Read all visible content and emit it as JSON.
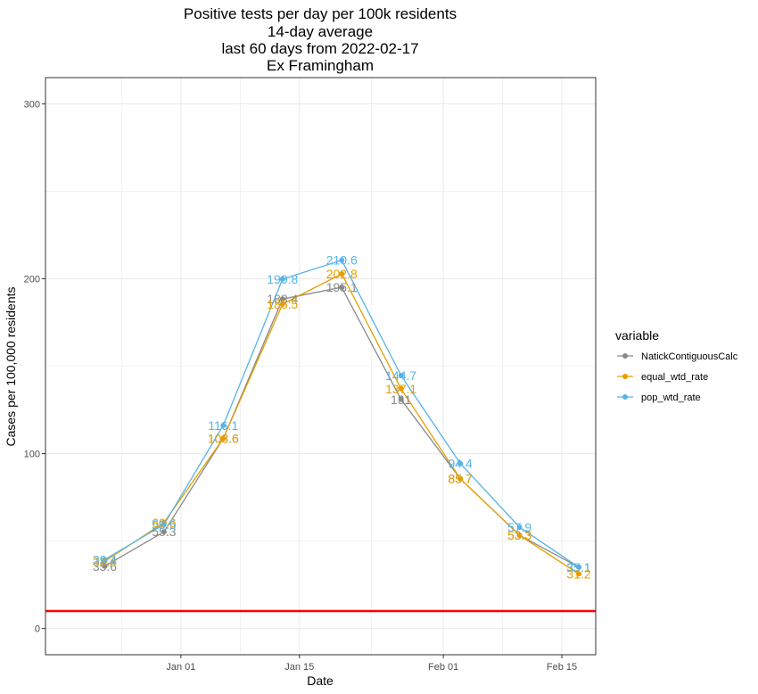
{
  "chart_data": {
    "type": "line",
    "title_lines": [
      "Positive tests per day per 100k residents",
      "14-day average",
      "last 60 days from 2022-02-17",
      "Ex Framingham"
    ],
    "xlabel": "Date",
    "ylabel": "Cases per 100,000 residents",
    "x_dates": [
      "2021-12-23",
      "2021-12-30",
      "2022-01-06",
      "2022-01-13",
      "2022-01-20",
      "2022-01-27",
      "2022-02-03",
      "2022-02-10",
      "2022-02-17"
    ],
    "xlim": [
      "2021-12-16",
      "2022-02-19"
    ],
    "x_ticks": [
      {
        "date": "2022-01-01",
        "label": "Jan 01"
      },
      {
        "date": "2022-01-15",
        "label": "Jan 15"
      },
      {
        "date": "2022-02-01",
        "label": "Feb 01"
      },
      {
        "date": "2022-02-15",
        "label": "Feb 15"
      }
    ],
    "y_ticks": [
      0,
      100,
      200,
      300
    ],
    "ylim": [
      -15,
      315
    ],
    "reference_line": {
      "y": 10,
      "color": "#ff0000"
    },
    "grid": true,
    "legend": {
      "title": "variable",
      "position": "right"
    },
    "series": [
      {
        "name": "NatickContiguousCalc",
        "color": "#898989",
        "values": [
          35.6,
          55.3,
          108.6,
          188.4,
          195.1,
          131,
          85.7,
          53.3,
          35.1
        ],
        "labels": [
          "35.6",
          "55.3",
          "108.6",
          "188.4",
          "195.1",
          "131",
          "85.7",
          "53.3",
          "35.1"
        ]
      },
      {
        "name": "equal_wtd_rate",
        "color": "#e69f00",
        "values": [
          38.4,
          60.6,
          108.6,
          185.5,
          202.8,
          137.1,
          85.7,
          53.3,
          31.2
        ],
        "labels": [
          "38.4",
          "60.6",
          "108.6",
          "185.5",
          "202.8",
          "137.1",
          "85.7",
          "53.3",
          "31.2"
        ]
      },
      {
        "name": "pop_wtd_rate",
        "color": "#56b4e9",
        "values": [
          39.4,
          59.5,
          116.1,
          199.8,
          210.6,
          144.7,
          94.4,
          57.9,
          35.1
        ],
        "labels": [
          "39.4",
          "59.5",
          "116.1",
          "199.8",
          "210.6",
          "144.7",
          "94.4",
          "57.9",
          "35.1"
        ]
      }
    ]
  }
}
